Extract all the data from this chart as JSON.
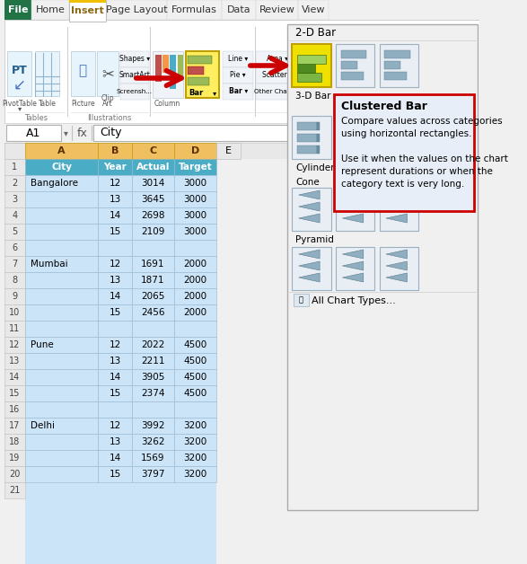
{
  "ribbon_tabs": [
    "File",
    "Home",
    "Insert",
    "Page Layout",
    "Formulas",
    "Data",
    "Review",
    "View"
  ],
  "cell_ref": "A1",
  "formula_bar_text": "City",
  "header_row": [
    "City",
    "Year",
    "Actual",
    "Target"
  ],
  "table_data": [
    [
      "Bangalore",
      12,
      3014,
      3000
    ],
    [
      "",
      13,
      3645,
      3000
    ],
    [
      "",
      14,
      2698,
      3000
    ],
    [
      "",
      15,
      2109,
      3000
    ],
    [
      "",
      "",
      "",
      ""
    ],
    [
      "Mumbai",
      12,
      1691,
      2000
    ],
    [
      "",
      13,
      1871,
      2000
    ],
    [
      "",
      14,
      2065,
      2000
    ],
    [
      "",
      15,
      2456,
      2000
    ],
    [
      "",
      "",
      "",
      ""
    ],
    [
      "Pune",
      12,
      2022,
      4500
    ],
    [
      "",
      13,
      2211,
      4500
    ],
    [
      "",
      14,
      3905,
      4500
    ],
    [
      "",
      15,
      2374,
      4500
    ],
    [
      "",
      "",
      "",
      ""
    ],
    [
      "Delhi",
      12,
      3992,
      3200
    ],
    [
      "",
      13,
      3262,
      3200
    ],
    [
      "",
      14,
      1569,
      3200
    ],
    [
      "",
      15,
      3797,
      3200
    ]
  ],
  "clustered_bar_title": "Clustered Bar",
  "clustered_bar_desc1": "Compare values across categories",
  "clustered_bar_desc2": "using horizontal rectangles.",
  "clustered_bar_desc3": "Use it when the values on the chart",
  "clustered_bar_desc4": "represent durations or when the",
  "clustered_bar_desc5": "category text is very long.",
  "all_chart_types": "All Chart Types...",
  "section_labels": [
    "3-D Bar",
    "Cylinder",
    "Cone",
    "Pyramid"
  ]
}
